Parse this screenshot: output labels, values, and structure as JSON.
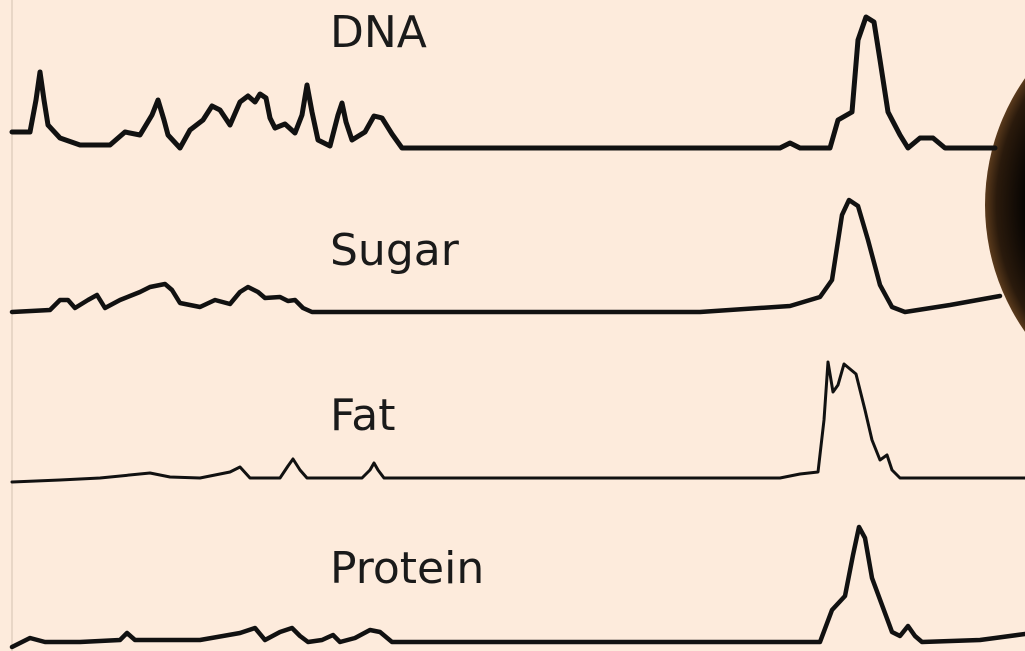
{
  "traces": [
    {
      "label": "DNA"
    },
    {
      "label": "Sugar"
    },
    {
      "label": "Fat"
    },
    {
      "label": "Protein"
    }
  ]
}
